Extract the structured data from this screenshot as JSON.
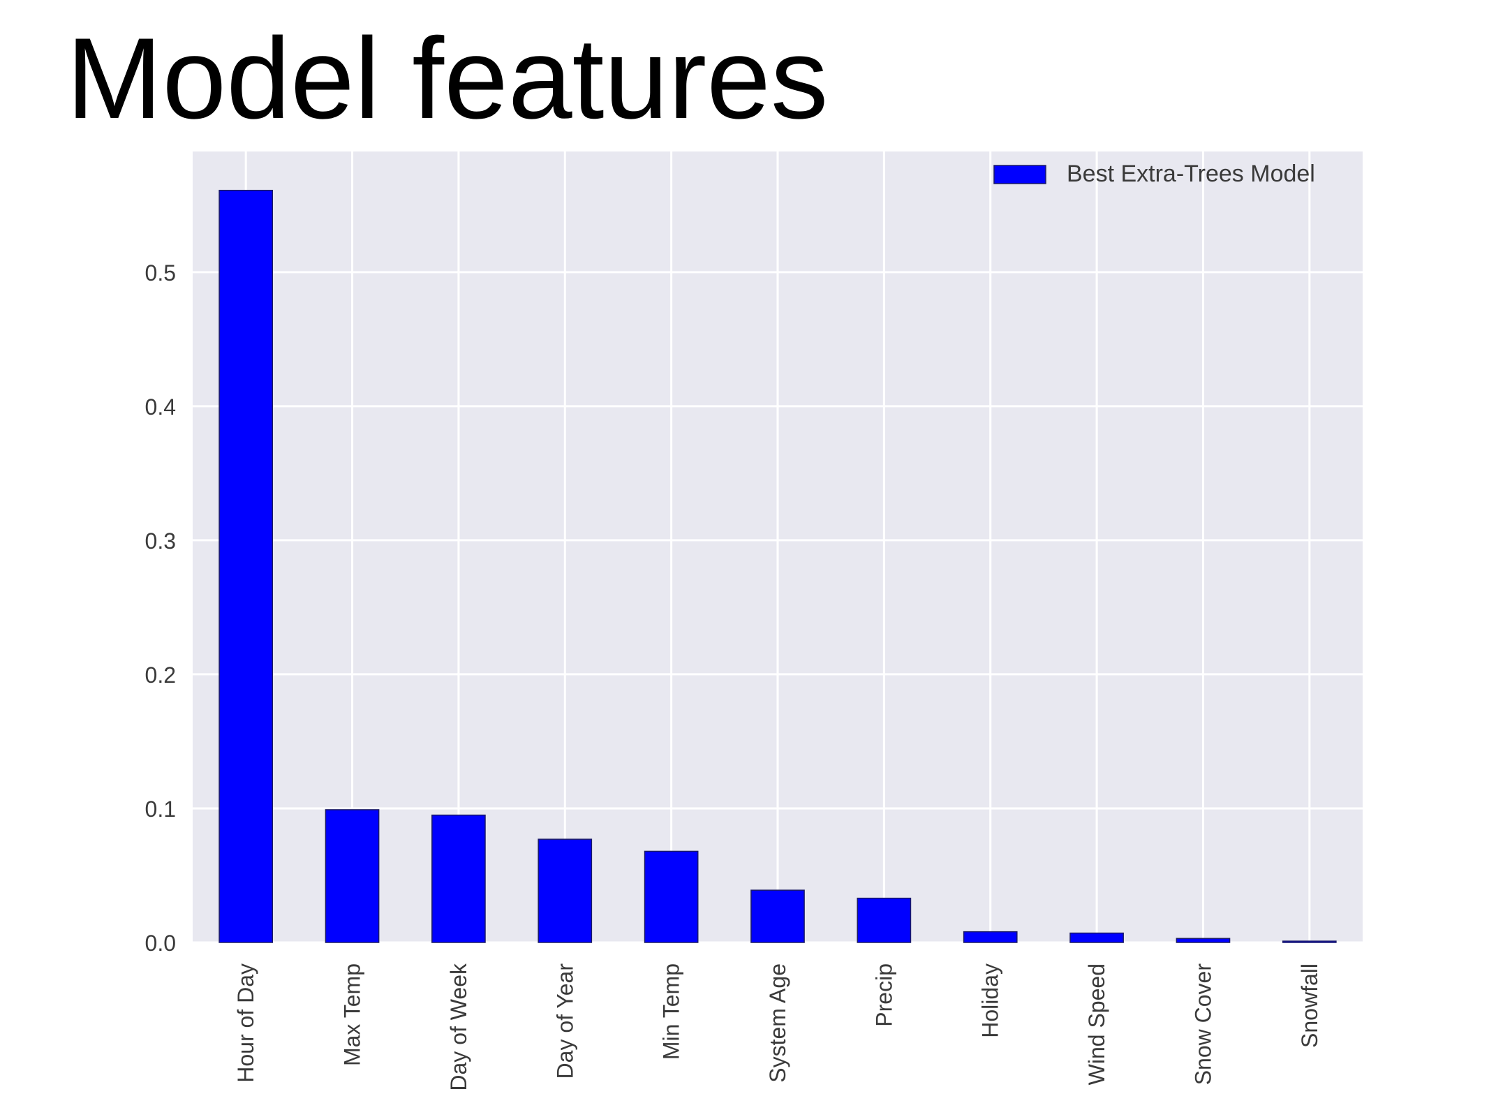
{
  "slide": {
    "title": "Model features"
  },
  "chart_data": {
    "type": "bar",
    "title": "",
    "xlabel": "",
    "ylabel": "",
    "categories": [
      "Hour of Day",
      "Max Temp",
      "Day of Week",
      "Day of Year",
      "Min Temp",
      "System Age",
      "Precip",
      "Holiday",
      "Wind Speed",
      "Snow Cover",
      "Snowfall"
    ],
    "series": [
      {
        "name": "Best Extra-Trees Model",
        "color": "#0000ff",
        "values": [
          0.561,
          0.099,
          0.095,
          0.077,
          0.068,
          0.039,
          0.033,
          0.008,
          0.007,
          0.003,
          0.001
        ]
      }
    ],
    "ylim": [
      0,
      0.59
    ],
    "yticks": [
      0.0,
      0.1,
      0.2,
      0.3,
      0.4,
      0.5
    ],
    "ytick_labels": [
      "0.0",
      "0.1",
      "0.2",
      "0.3",
      "0.4",
      "0.5"
    ],
    "grid": true,
    "legend": "top-right",
    "background_color": "#e8e8f0",
    "grid_color": "#ffffff"
  }
}
